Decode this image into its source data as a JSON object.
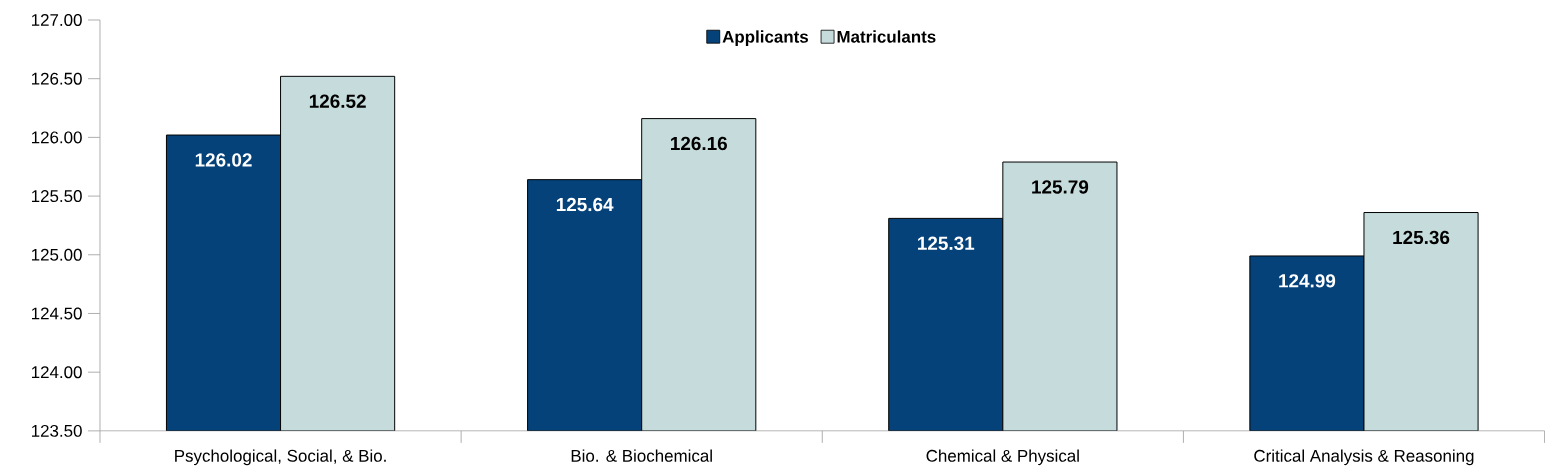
{
  "chart_data": {
    "type": "bar",
    "categories": [
      "Psychological, Social, &  Bio.",
      "Bio. & Biochemical",
      "Chemical & Physical",
      "Critical Analysis & Reasoning"
    ],
    "series": [
      {
        "name": "Applicants",
        "color": "#06427a",
        "values": [
          126.02,
          125.64,
          125.31,
          124.99
        ]
      },
      {
        "name": "Matriculants",
        "color": "#c6dcdc",
        "values": [
          126.52,
          126.16,
          125.79,
          125.36
        ]
      }
    ],
    "ylim": [
      123.5,
      127.0
    ],
    "yticks": [
      {
        "value": 123.5,
        "label": "123.50"
      },
      {
        "value": 124.0,
        "label": "124.00"
      },
      {
        "value": 124.5,
        "label": "124.50"
      },
      {
        "value": 125.0,
        "label": "125.00"
      },
      {
        "value": 125.5,
        "label": "125.50"
      },
      {
        "value": 126.0,
        "label": "126.00"
      },
      {
        "value": 126.5,
        "label": "126.50"
      },
      {
        "value": 127.0,
        "label": "127.00"
      }
    ],
    "data_labels": true,
    "legend": "top",
    "grid": false
  }
}
